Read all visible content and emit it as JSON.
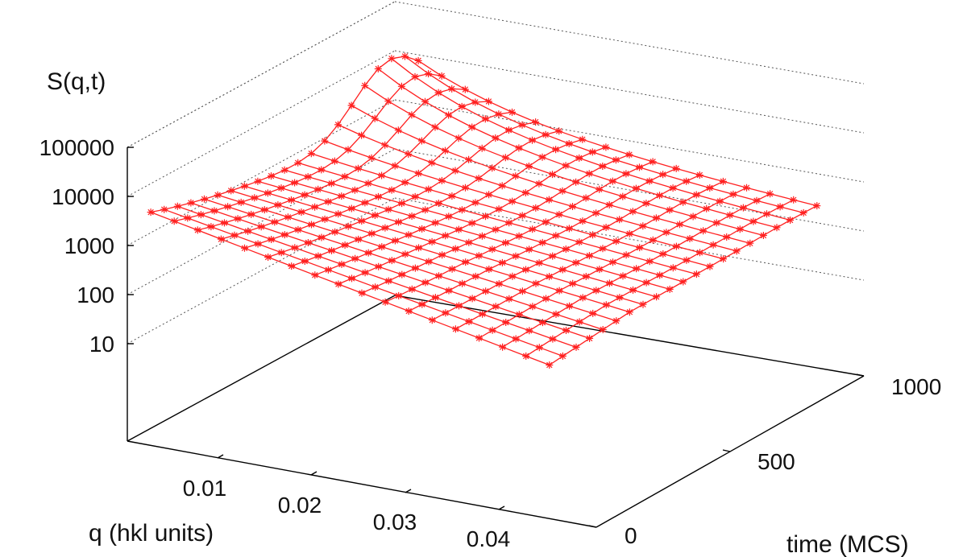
{
  "chart_data": {
    "type": "surface",
    "zlabel": "S(q,t)",
    "xlabel": "q (hkl units)",
    "ylabel": "time (MCS)",
    "z_scale": "log",
    "zlim": [
      1,
      100000
    ],
    "z_ticks": [
      "100000",
      "10000",
      "1000",
      "100",
      "10"
    ],
    "q_ticks": [
      "0.01",
      "0.02",
      "0.03",
      "0.04"
    ],
    "t_ticks": [
      "0",
      "500",
      "1000"
    ],
    "q_values": [
      0.0025,
      0.005,
      0.0075,
      0.01,
      0.0125,
      0.015,
      0.0175,
      0.02,
      0.0225,
      0.025,
      0.0275,
      0.03,
      0.0325,
      0.035,
      0.0375,
      0.04,
      0.0425,
      0.045
    ],
    "t_values": [
      0,
      50,
      100,
      150,
      200,
      250,
      300,
      350,
      400,
      450,
      500,
      550,
      600,
      650,
      700,
      750,
      800,
      850,
      900,
      950,
      1000
    ],
    "surface_color": "#ff2020",
    "model": "log10 S(q,t) reconstructed per grid point from the rendered surface",
    "grid": true
  }
}
